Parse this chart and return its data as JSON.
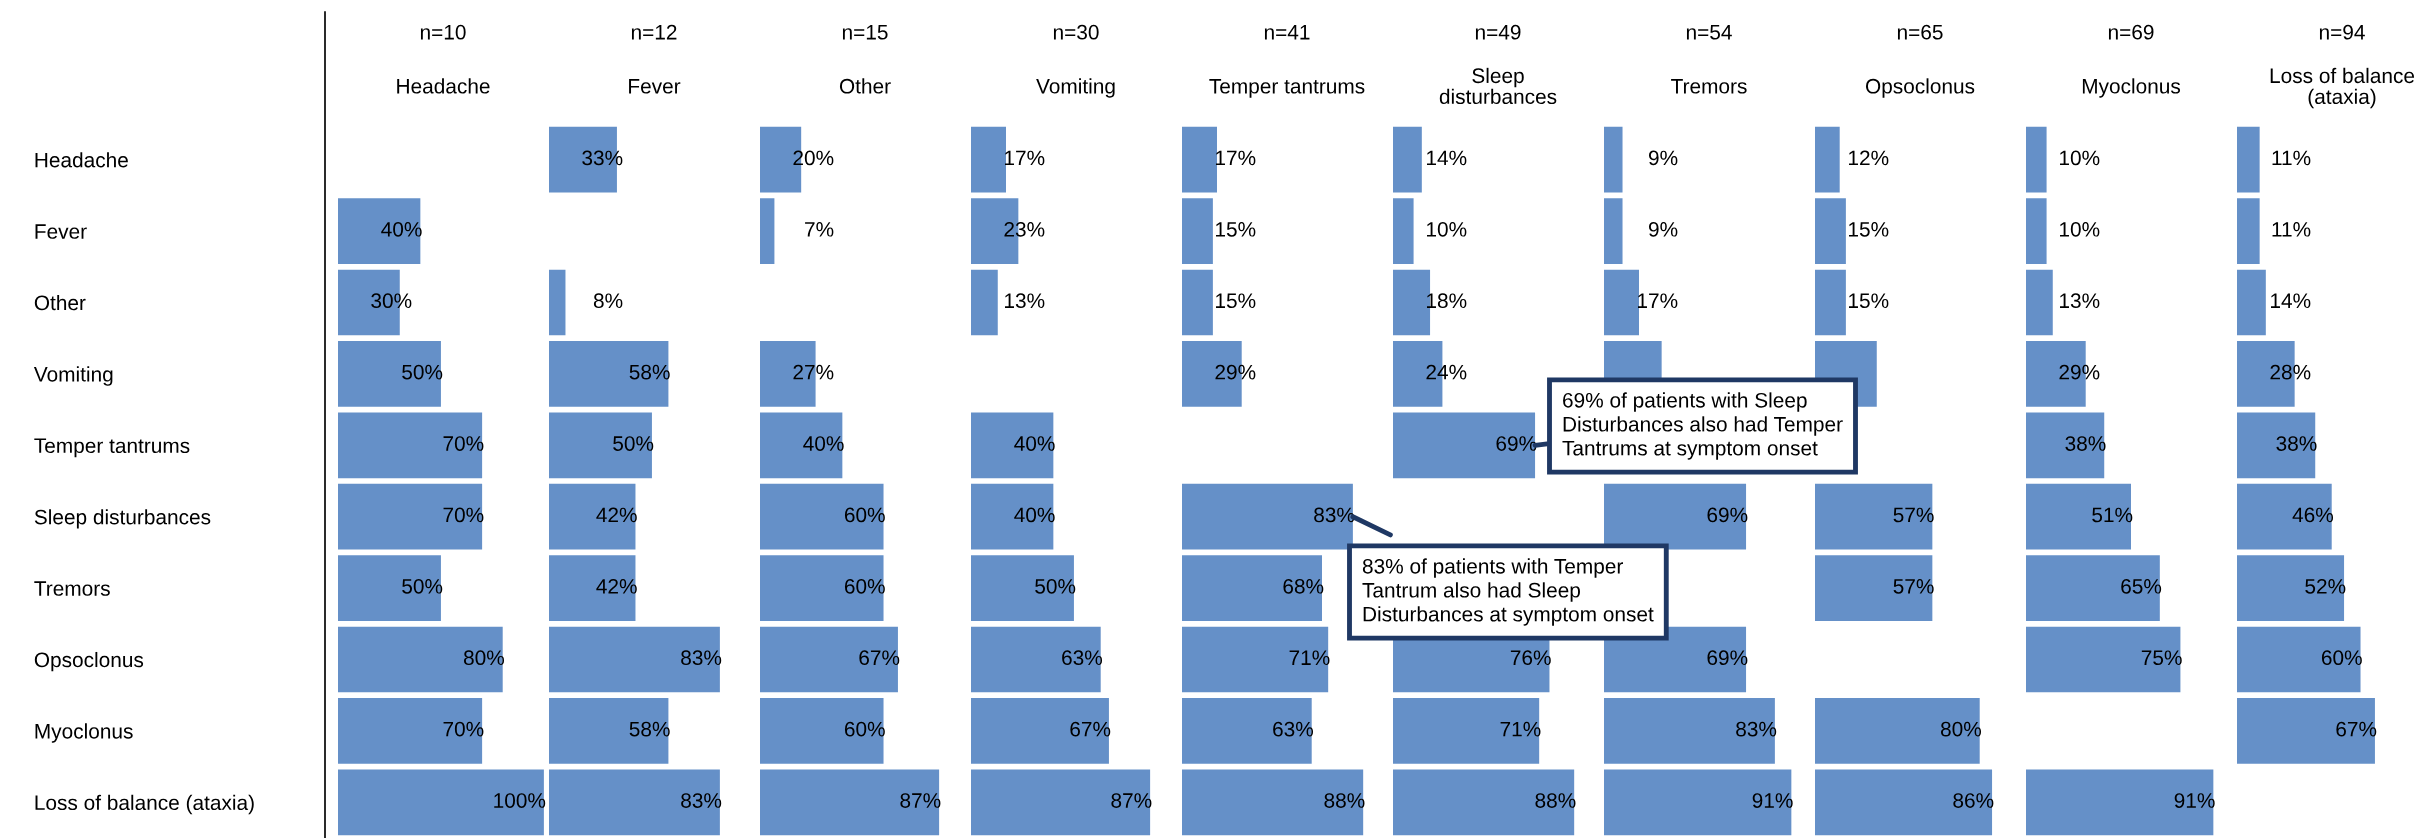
{
  "chart_data": [
    {
      "type": "bar",
      "orientation": "horizontal",
      "title": "Headache",
      "subtitle": "n=10",
      "categories": [
        "Headache",
        "Fever",
        "Other",
        "Vomiting",
        "Temper tantrums",
        "Sleep disturbances",
        "Tremors",
        "Opsoclonus",
        "Myoclonus",
        "Loss of balance (ataxia)"
      ],
      "color": "#6590c8",
      "tick_labels": "y",
      "values": [
        null,
        40,
        30,
        50,
        70,
        70,
        50,
        80,
        70,
        100
      ],
      "value_labels": [
        null,
        "40%",
        "30%",
        "50%",
        "70%",
        "70%",
        "50%",
        "80%",
        "70%",
        "100%"
      ]
    },
    {
      "type": "bar",
      "orientation": "horizontal",
      "title": "Fever",
      "subtitle": "n=12",
      "categories": [
        "Headache",
        "Fever",
        "Other",
        "Vomiting",
        "Temper tantrums",
        "Sleep disturbances",
        "Tremors",
        "Opsoclonus",
        "Myoclonus",
        "Loss of balance (ataxia)"
      ],
      "color": "#6590c8",
      "tick_labels": false,
      "values": [
        33,
        null,
        8,
        58,
        50,
        42,
        42,
        83,
        58,
        83
      ],
      "value_labels": [
        "33%",
        null,
        "8%",
        "58%",
        "50%",
        "42%",
        "42%",
        "83%",
        "58%",
        "83%"
      ]
    },
    {
      "type": "bar",
      "orientation": "horizontal",
      "title": "Other",
      "subtitle": "n=15",
      "categories": [
        "Headache",
        "Fever",
        "Other",
        "Vomiting",
        "Temper tantrums",
        "Sleep disturbances",
        "Tremors",
        "Opsoclonus",
        "Myoclonus",
        "Loss of balance (ataxia)"
      ],
      "color": "#6590c8",
      "tick_labels": false,
      "values": [
        20,
        7,
        null,
        27,
        40,
        60,
        60,
        67,
        60,
        87
      ],
      "value_labels": [
        "20%",
        "7%",
        null,
        "27%",
        "40%",
        "60%",
        "60%",
        "67%",
        "60%",
        "87%"
      ]
    },
    {
      "type": "bar",
      "orientation": "horizontal",
      "title": "Vomiting",
      "subtitle": "n=30",
      "categories": [
        "Headache",
        "Fever",
        "Other",
        "Vomiting",
        "Temper tantrums",
        "Sleep disturbances",
        "Tremors",
        "Opsoclonus",
        "Myoclonus",
        "Loss of balance (ataxia)"
      ],
      "color": "#6590c8",
      "tick_labels": false,
      "values": [
        17,
        23,
        13,
        null,
        40,
        40,
        50,
        63,
        67,
        87
      ],
      "value_labels": [
        "17%",
        "23%",
        "13%",
        null,
        "40%",
        "40%",
        "50%",
        "63%",
        "67%",
        "87%"
      ]
    },
    {
      "type": "bar",
      "orientation": "horizontal",
      "title": "Temper tantrums",
      "subtitle": "n=41",
      "categories": [
        "Headache",
        "Fever",
        "Other",
        "Vomiting",
        "Temper tantrums",
        "Sleep disturbances",
        "Tremors",
        "Opsoclonus",
        "Myoclonus",
        "Loss of balance (ataxia)"
      ],
      "color": "#6590c8",
      "tick_labels": false,
      "values": [
        17,
        15,
        15,
        29,
        null,
        83,
        68,
        71,
        63,
        88
      ],
      "value_labels": [
        "17%",
        "15%",
        "15%",
        "29%",
        null,
        "83%",
        "68%",
        "71%",
        "63%",
        "88%"
      ],
      "annotations": [
        {
          "text": "83% of patients with Temper\nTantrum also had Sleep\nDisturbances at symptom onset",
          "x": 83,
          "y": "Sleep disturbances"
        }
      ]
    },
    {
      "type": "bar",
      "orientation": "horizontal",
      "title": "Sleep\ndisturbances",
      "subtitle": "n=49",
      "categories": [
        "Headache",
        "Fever",
        "Other",
        "Vomiting",
        "Temper tantrums",
        "Sleep disturbances",
        "Tremors",
        "Opsoclonus",
        "Myoclonus",
        "Loss of balance (ataxia)"
      ],
      "color": "#6590c8",
      "tick_labels": false,
      "values": [
        14,
        10,
        18,
        24,
        69,
        null,
        null,
        76,
        71,
        88
      ],
      "value_labels": [
        "14%",
        "10%",
        "18%",
        "24%",
        "69%",
        null,
        null,
        "76%",
        "71%",
        "88%"
      ],
      "annotations": [
        {
          "text": "69% of patients with Sleep\nDisturbances also had Temper\nTantrums at symptom onset",
          "x": 69,
          "y": "Temper tantrums"
        }
      ]
    },
    {
      "type": "bar",
      "orientation": "horizontal",
      "title": "Tremors",
      "subtitle": "n=54",
      "categories": [
        "Headache",
        "Fever",
        "Other",
        "Vomiting",
        "Temper tantrums",
        "Sleep disturbances",
        "Tremors",
        "Opsoclonus",
        "Myoclonus",
        "Loss of balance (ataxia)"
      ],
      "color": "#6590c8",
      "tick_labels": false,
      "values": [
        9,
        9,
        17,
        28,
        null,
        69,
        null,
        69,
        83,
        91
      ],
      "value_labels": [
        "9%",
        "9%",
        "17%",
        null,
        null,
        "69%",
        null,
        "69%",
        "83%",
        "91%"
      ]
    },
    {
      "type": "bar",
      "orientation": "horizontal",
      "title": "Opsoclonus",
      "subtitle": "n=65",
      "categories": [
        "Headache",
        "Fever",
        "Other",
        "Vomiting",
        "Temper tantrums",
        "Sleep disturbances",
        "Tremors",
        "Opsoclonus",
        "Myoclonus",
        "Loss of balance (ataxia)"
      ],
      "color": "#6590c8",
      "tick_labels": false,
      "values": [
        12,
        15,
        15,
        30,
        null,
        57,
        57,
        null,
        80,
        86
      ],
      "value_labels": [
        "12%",
        "15%",
        "15%",
        null,
        null,
        "57%",
        "57%",
        null,
        "80%",
        "86%"
      ]
    },
    {
      "type": "bar",
      "orientation": "horizontal",
      "title": "Myoclonus",
      "subtitle": "n=69",
      "categories": [
        "Headache",
        "Fever",
        "Other",
        "Vomiting",
        "Temper tantrums",
        "Sleep disturbances",
        "Tremors",
        "Opsoclonus",
        "Myoclonus",
        "Loss of balance (ataxia)"
      ],
      "color": "#6590c8",
      "tick_labels": false,
      "values": [
        10,
        10,
        13,
        29,
        38,
        51,
        65,
        75,
        null,
        91
      ],
      "value_labels": [
        "10%",
        "10%",
        "13%",
        "29%",
        "38%",
        "51%",
        "65%",
        "75%",
        null,
        "91%"
      ]
    },
    {
      "type": "bar",
      "orientation": "horizontal",
      "title": "Loss of balance\n(ataxia)",
      "subtitle": "n=94",
      "categories": [
        "Headache",
        "Fever",
        "Other",
        "Vomiting",
        "Temper tantrums",
        "Sleep disturbances",
        "Tremors",
        "Opsoclonus",
        "Myoclonus",
        "Loss of balance (ataxia)"
      ],
      "color": "#6590c8",
      "tick_labels": false,
      "values": [
        11,
        11,
        14,
        28,
        38,
        46,
        52,
        60,
        67,
        null
      ],
      "value_labels": [
        "11%",
        "11%",
        "14%",
        "28%",
        "38%",
        "46%",
        "52%",
        "60%",
        "67%",
        null
      ]
    }
  ]
}
